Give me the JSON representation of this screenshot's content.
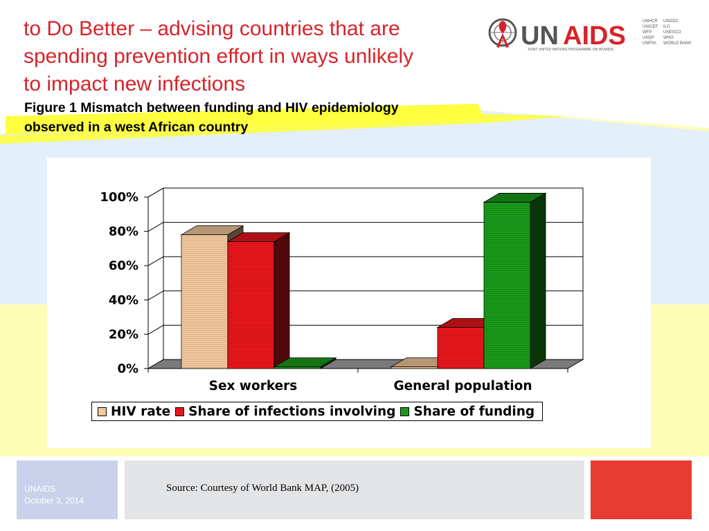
{
  "slide": {
    "title_lines": [
      "to Do Better – advising countries that are",
      "spending prevention effort in ways unlikely",
      "to impact new infections"
    ],
    "subtitle_lines": [
      "Figure 1 Mismatch between funding and HIV epidemiology",
      "observed in a west African country"
    ]
  },
  "logo": {
    "wordmark_un": "UN",
    "wordmark_aids": "AIDS",
    "tagline": "JOINT UNITED NATIONS PROGRAMME ON HIV/AIDS",
    "cosponsors_col1": [
      "UNHCR",
      "UNICEF",
      "WFP",
      "UNDP",
      "UNFPA"
    ],
    "cosponsors_col2": [
      "UNODC",
      "ILO",
      "UNESCO",
      "WHO",
      "WORLD BANK"
    ]
  },
  "footer": {
    "org": "UNAIDS",
    "date": "October 3, 2014",
    "source": "Source: Courtesy of World Bank MAP, (2005)"
  },
  "colors": {
    "title_red": "#d8232a",
    "hiv_rate": "#f4c89c",
    "share_infections": "#e8161c",
    "share_funding": "#1a9a1a",
    "footer_blue": "#c9d2ea",
    "footer_gray": "#e3e4e6",
    "footer_red": "#e63c32"
  },
  "chart_data": {
    "type": "bar",
    "style": "3d-clustered",
    "categories": [
      "Sex workers",
      "General population"
    ],
    "series": [
      {
        "name": "HIV rate",
        "values": [
          78,
          1
        ],
        "color": "#f4c89c"
      },
      {
        "name": "Share of infections involving",
        "values": [
          74,
          24
        ],
        "color": "#e8161c"
      },
      {
        "name": "Share of funding",
        "values": [
          1,
          97
        ],
        "color": "#1a9a1a"
      }
    ],
    "yticks": [
      "0%",
      "20%",
      "40%",
      "60%",
      "80%",
      "100%"
    ],
    "ylim": [
      0,
      100
    ],
    "grid": true,
    "legend": "bottom"
  }
}
